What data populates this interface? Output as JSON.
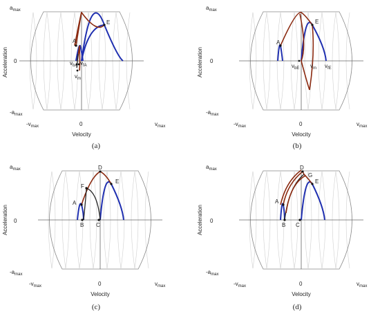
{
  "panels": [
    {
      "caption": "(a)",
      "ytick_top": "a",
      "ytick_top_sub": "max",
      "ytick_zero": "0",
      "ytick_bottom": "-a",
      "ytick_bottom_sub": "max",
      "xtick_left": "-v",
      "xtick_left_sub": "max",
      "xtick_zero": "0",
      "xtick_right": "v",
      "xtick_right_sub": "max",
      "xlabel": "Velocity",
      "ylabel": "Acceleration",
      "points": {
        "A": "A",
        "E": "E",
        "vbA": "v",
        "vbA_sub": "bA",
        "vfA": "v",
        "vfA_sub": "fA",
        "vm": "v",
        "vm_sub": "m"
      }
    },
    {
      "caption": "(b)",
      "ytick_top": "a",
      "ytick_top_sub": "max",
      "ytick_zero": "0",
      "ytick_bottom": "-a",
      "ytick_bottom_sub": "max",
      "xtick_left": "-v",
      "xtick_left_sub": "max",
      "xtick_zero": "0",
      "xtick_right": "v",
      "xtick_right_sub": "max",
      "xlabel": "Velocity",
      "ylabel": "Acceleration",
      "points": {
        "A": "A",
        "E": "E",
        "vbE": "v",
        "vbE_sub": "bE",
        "vm": "v",
        "vm_sub": "m",
        "vfE": "v",
        "vfE_sub": "fE"
      }
    },
    {
      "caption": "(c)",
      "ytick_top": "a",
      "ytick_top_sub": "max",
      "ytick_zero": "0",
      "ytick_bottom": "-a",
      "ytick_bottom_sub": "max",
      "xtick_left": "-v",
      "xtick_left_sub": "max",
      "xtick_zero": "0",
      "xtick_right": "v",
      "xtick_right_sub": "max",
      "xlabel": "Velocity",
      "ylabel": "Acceleration",
      "points": {
        "A": "A",
        "B": "B",
        "C": "C",
        "D": "D",
        "E": "E",
        "F": "F"
      }
    },
    {
      "caption": "(d)",
      "ytick_top": "a",
      "ytick_top_sub": "max",
      "ytick_zero": "0",
      "ytick_bottom": "-a",
      "ytick_bottom_sub": "max",
      "xtick_left": "-v",
      "xtick_left_sub": "max",
      "xtick_zero": "0",
      "xtick_right": "v",
      "xtick_right_sub": "max",
      "xlabel": "Velocity",
      "ylabel": "Acceleration",
      "points": {
        "A": "A",
        "B": "B",
        "C": "C",
        "D": "D",
        "E": "E",
        "G": "G"
      }
    }
  ]
}
